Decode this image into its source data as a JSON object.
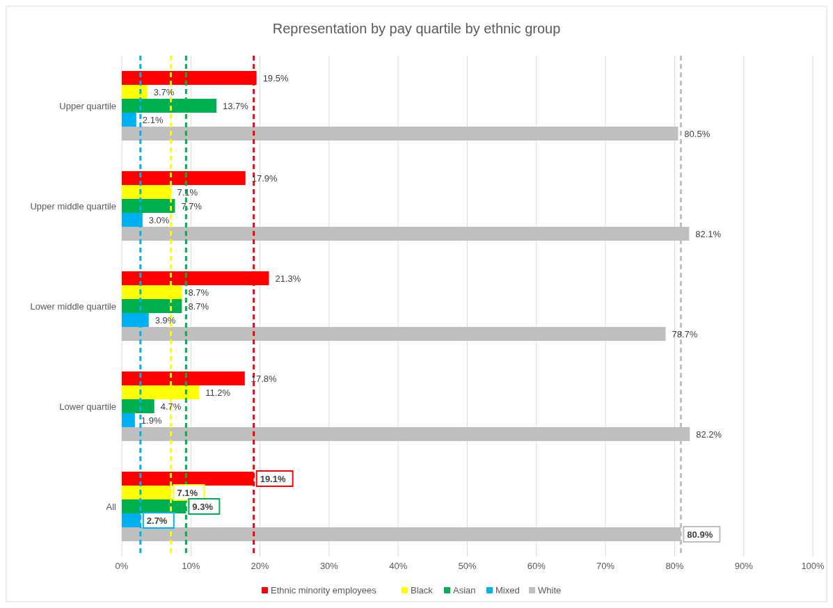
{
  "chart_data": {
    "type": "bar",
    "orientation": "horizontal",
    "title": "Representation by pay quartile by ethnic group",
    "categories": [
      "Upper quartile",
      "Upper middle quartile",
      "Lower middle quartile",
      "Lower quartile",
      "All"
    ],
    "series": [
      {
        "name": "Ethnic minority employees",
        "color": "#ff0000",
        "values": [
          19.5,
          17.9,
          21.3,
          17.8,
          19.1
        ],
        "value_labels": [
          "19.5%",
          "17.9%",
          "21.3%",
          "17.8%",
          "19.1%"
        ]
      },
      {
        "name": "Black",
        "color": "#ffff00",
        "values": [
          3.7,
          7.1,
          8.7,
          11.2,
          7.1
        ],
        "value_labels": [
          "3.7%",
          "7.1%",
          "8.7%",
          "11.2%",
          "7.1%"
        ]
      },
      {
        "name": "Asian",
        "color": "#00b050",
        "values": [
          13.7,
          7.7,
          8.7,
          4.7,
          9.3
        ],
        "value_labels": [
          "13.7%",
          "7.7%",
          "8.7%",
          "4.7%",
          "9.3%"
        ]
      },
      {
        "name": "Mixed",
        "color": "#00b0f0",
        "values": [
          2.1,
          3.0,
          3.9,
          1.9,
          2.7
        ],
        "value_labels": [
          "2.1%",
          "3.0%",
          "3.9%",
          "1.9%",
          "2.7%"
        ]
      },
      {
        "name": "White",
        "color": "#bfbfbf",
        "values": [
          80.5,
          82.1,
          78.7,
          82.2,
          80.9
        ],
        "value_labels": [
          "80.5%",
          "82.1%",
          "78.7%",
          "82.2%",
          "80.9%"
        ]
      }
    ],
    "xlim": [
      0,
      100
    ],
    "xticks": [
      {
        "value": 0,
        "label": "0%"
      },
      {
        "value": 10,
        "label": "10%"
      },
      {
        "value": 20,
        "label": "20%"
      },
      {
        "value": 30,
        "label": "30%"
      },
      {
        "value": 40,
        "label": "40%"
      },
      {
        "value": 50,
        "label": "50%"
      },
      {
        "value": 60,
        "label": "60%"
      },
      {
        "value": 70,
        "label": "70%"
      },
      {
        "value": 80,
        "label": "80%"
      },
      {
        "value": 90,
        "label": "90%"
      },
      {
        "value": 100,
        "label": "100%"
      }
    ],
    "ref_lines": [
      {
        "axis": "x",
        "value": 19.1,
        "color": "#ff0000",
        "line_style": "dashed"
      },
      {
        "axis": "x",
        "value": 7.1,
        "color": "#ffff00",
        "line_style": "dashed"
      },
      {
        "axis": "x",
        "value": 9.3,
        "color": "#00b050",
        "line_style": "dashed"
      },
      {
        "axis": "x",
        "value": 2.7,
        "color": "#00b0f0",
        "line_style": "dashed"
      },
      {
        "axis": "x",
        "value": 80.9,
        "color": "#bfbfbf",
        "line_style": "dashed"
      }
    ],
    "grid": "x",
    "legend": "bottom"
  }
}
